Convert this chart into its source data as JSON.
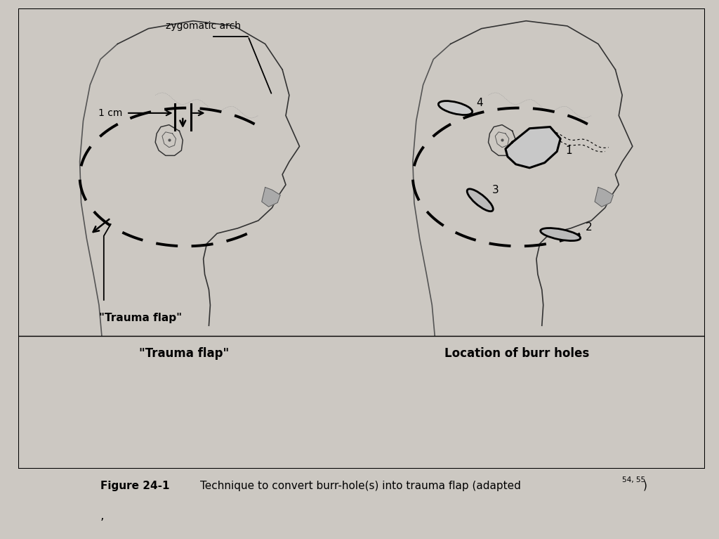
{
  "bg_outer": "#ccc8c2",
  "bg_panel": "#ffffff",
  "bg_bottom": "#c8c4be",
  "left_label": "\"Trauma flap\"",
  "right_label": "Location of burr holes",
  "zygomatic_label": "zygomatic arch",
  "cm_label": "1 cm",
  "fig_label": "Figure 24-1",
  "fig_caption": "   Technique to convert burr-hole(s) into trauma flap (adapted",
  "fig_super": "54, 55",
  "fig_end": ")",
  "burr_numbers": [
    "1",
    "2",
    "3",
    "4"
  ]
}
